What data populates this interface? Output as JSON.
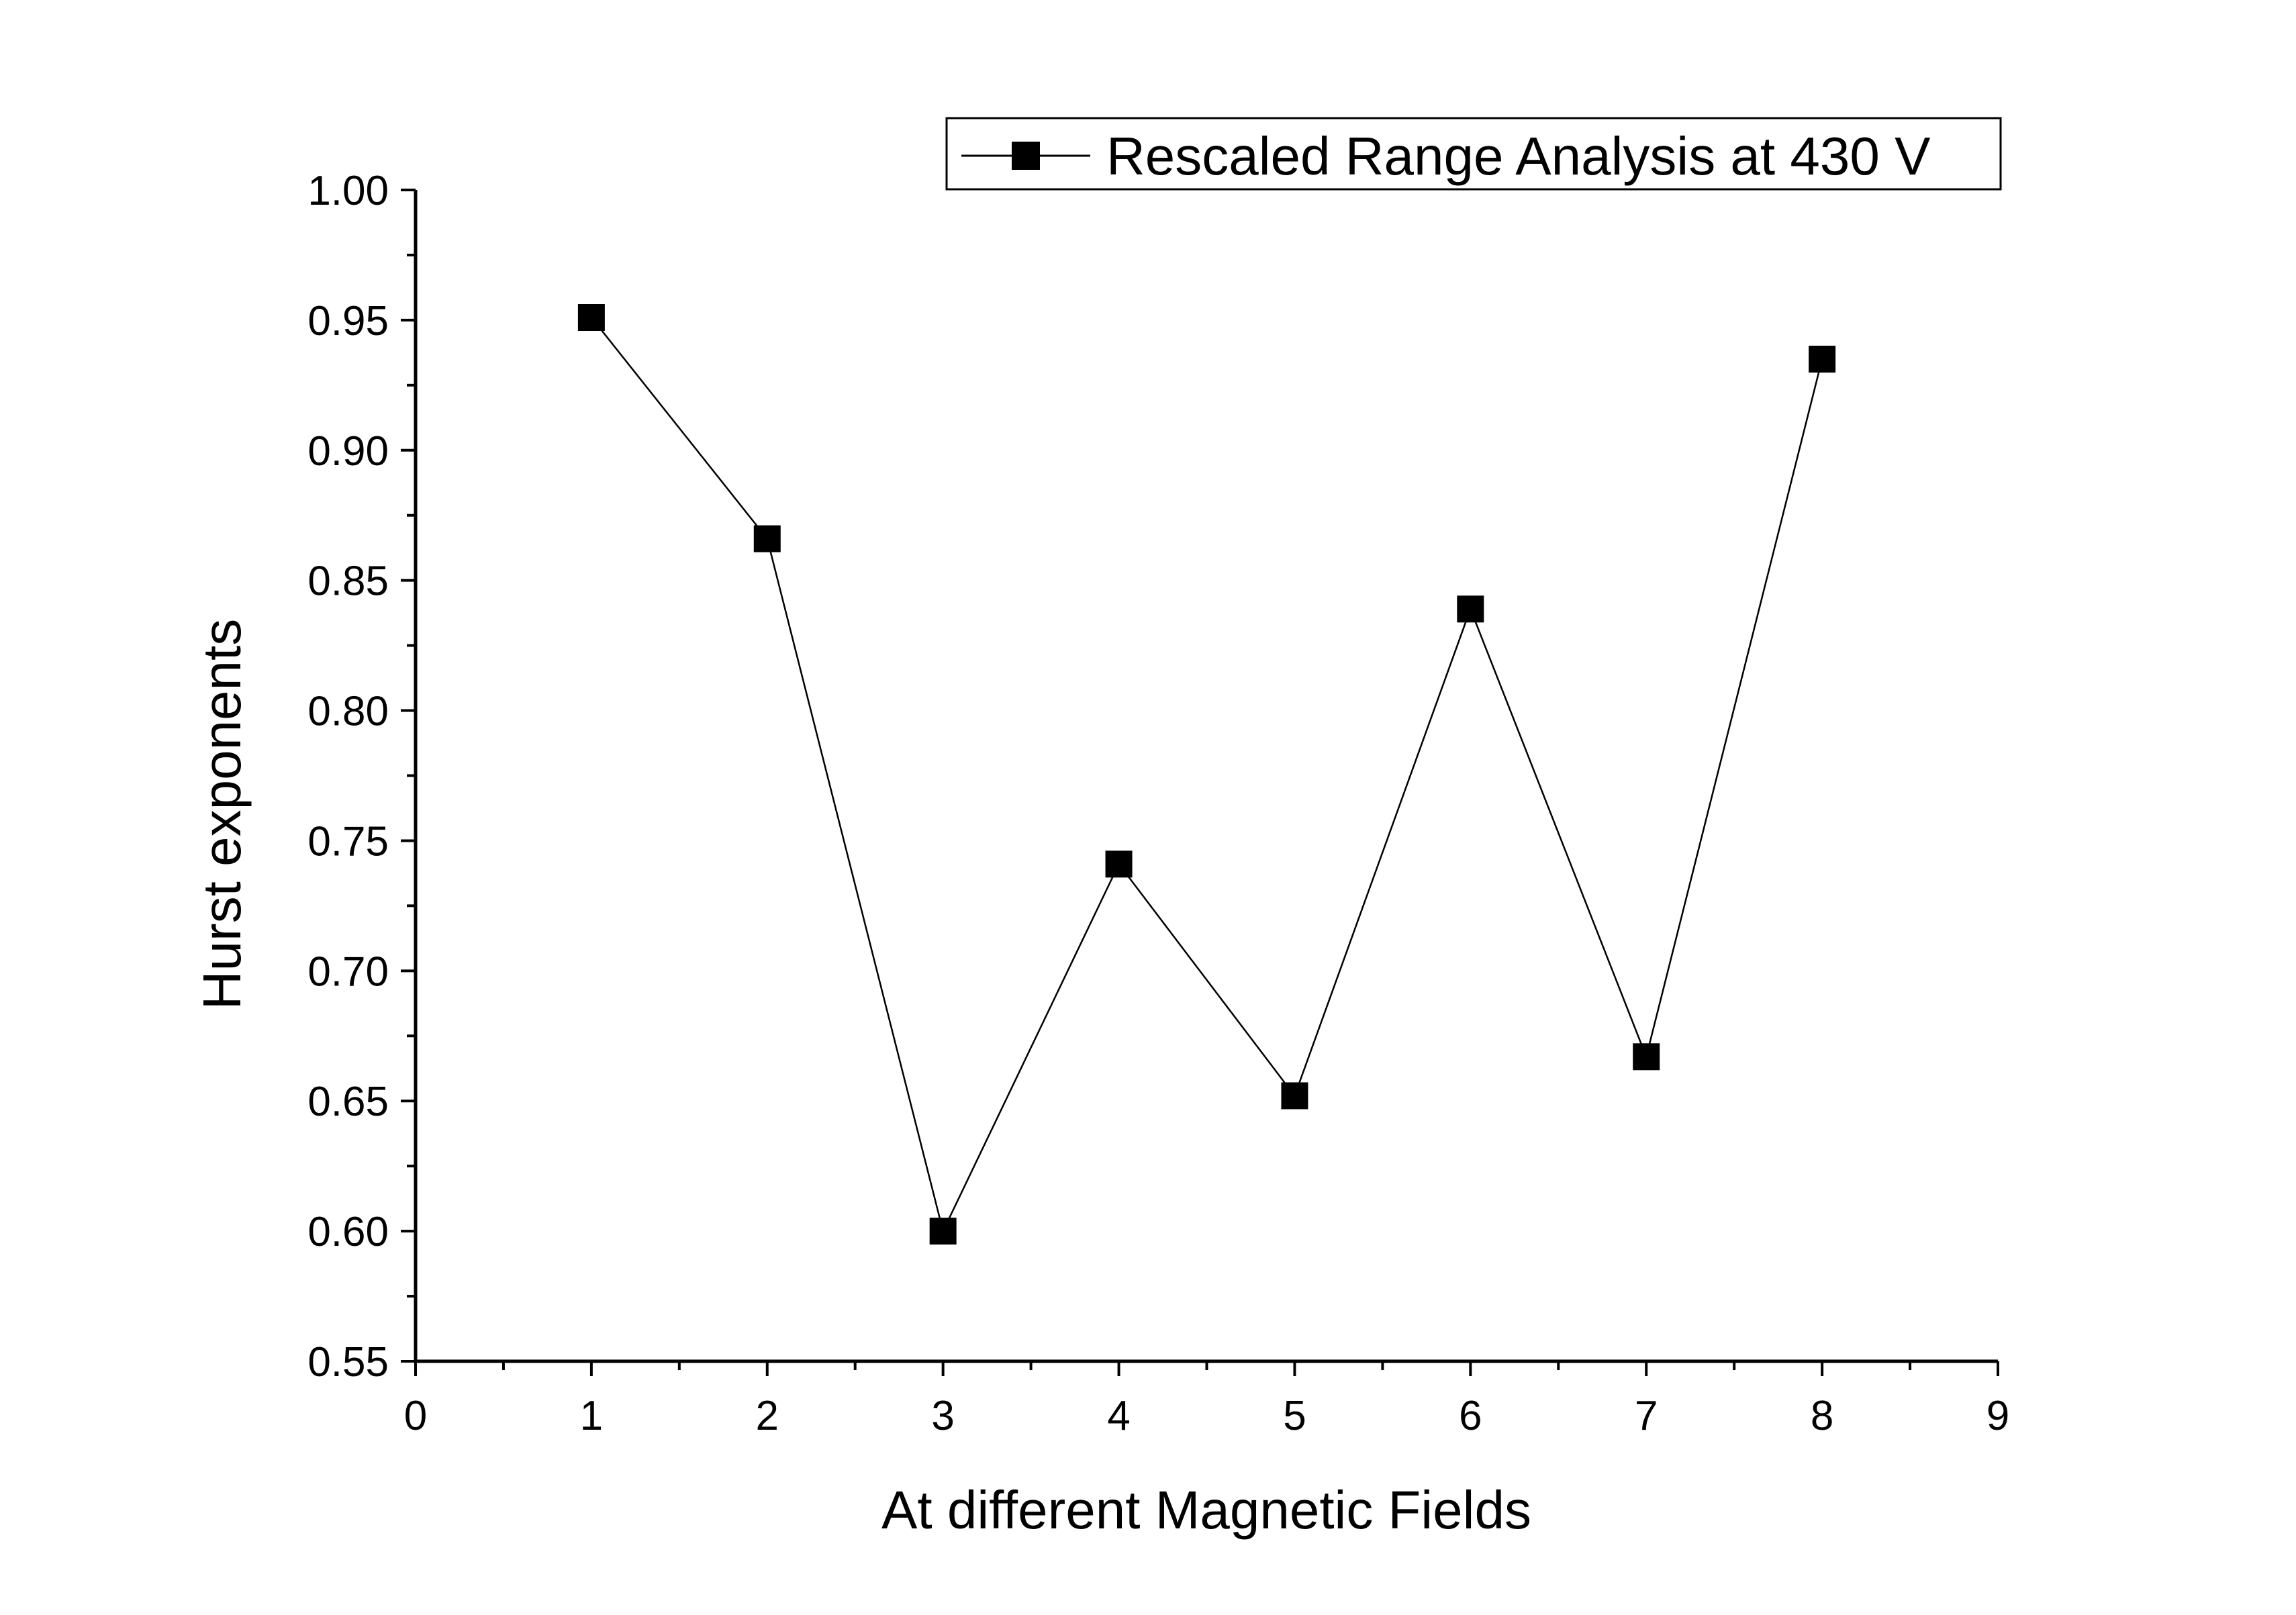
{
  "chart_data": {
    "type": "line",
    "xlabel": "At different Magnetic Fields",
    "ylabel": "Hurst exponents",
    "xlim": [
      0,
      9
    ],
    "ylim": [
      0.55,
      1.0
    ],
    "x_ticks": [
      "0",
      "1",
      "2",
      "3",
      "4",
      "5",
      "6",
      "7",
      "8",
      "9"
    ],
    "y_ticks": [
      "0.55",
      "0.60",
      "0.65",
      "0.70",
      "0.75",
      "0.80",
      "0.85",
      "0.90",
      "0.95",
      "1.00"
    ],
    "grid": false,
    "legend_position": "top-right",
    "series": [
      {
        "name": "Rescaled Range Analysis at 430 V",
        "marker": "square",
        "color": "#000000",
        "x": [
          1,
          2,
          3,
          4,
          5,
          6,
          7,
          8
        ],
        "y": [
          0.951,
          0.866,
          0.6,
          0.741,
          0.652,
          0.839,
          0.667,
          0.935
        ]
      }
    ]
  }
}
